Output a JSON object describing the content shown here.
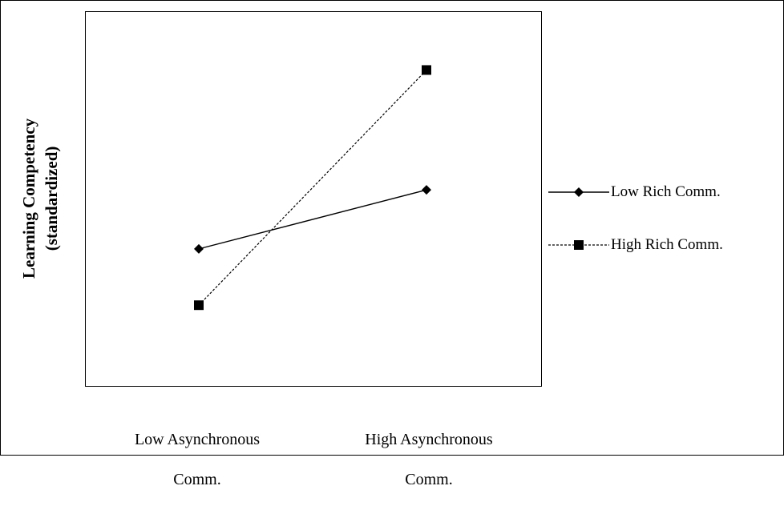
{
  "chart_data": {
    "type": "line",
    "categories": [
      "Low Asynchronous Comm.",
      "High Asynchronous Comm."
    ],
    "category_lines": [
      [
        "Low Asynchronous",
        "Comm."
      ],
      [
        "High Asynchronous",
        "Comm."
      ]
    ],
    "ylabel_lines": [
      "Learning Competency",
      "(standardized)"
    ],
    "series": [
      {
        "name": "Low Rich Comm.",
        "values": [
          -0.3,
          0.35
        ],
        "line_style": "solid",
        "marker": "diamond"
      },
      {
        "name": "High Rich Comm.",
        "values": [
          -0.92,
          1.67
        ],
        "line_style": "dashed",
        "marker": "square"
      }
    ],
    "ylim": [
      -1.8,
      2.3
    ],
    "grid": false,
    "legend_position": "right"
  },
  "colors": {
    "line": "#000000",
    "background": "#ffffff"
  }
}
